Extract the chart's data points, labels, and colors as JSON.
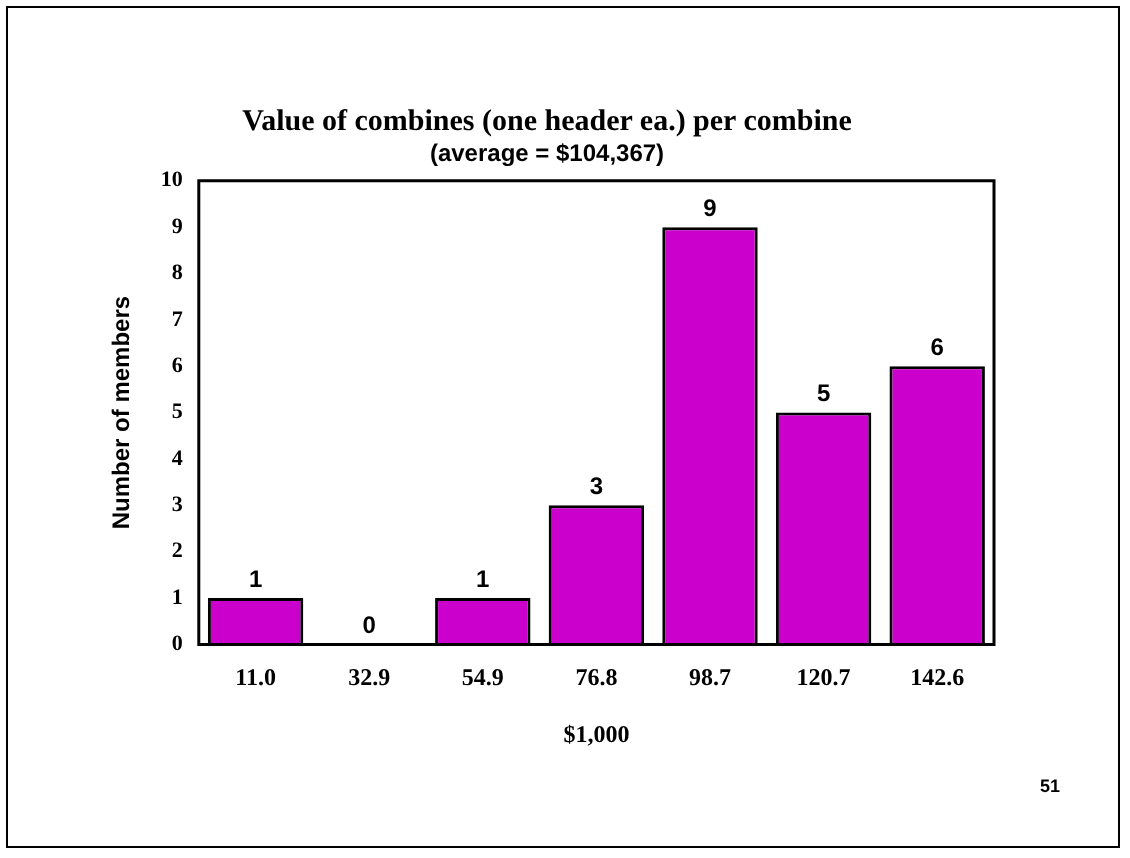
{
  "chart_data": {
    "type": "bar",
    "title": "Value of combines (one header ea.) per combine",
    "subtitle": "(average = $104,367)",
    "xlabel": "$1,000",
    "ylabel": "Number of members",
    "categories": [
      "11.0",
      "32.9",
      "54.9",
      "76.8",
      "98.7",
      "120.7",
      "142.6"
    ],
    "values": [
      1,
      0,
      1,
      3,
      9,
      5,
      6
    ],
    "color": "#cc00cc",
    "ylim": [
      0,
      10
    ],
    "yticks": [
      0,
      1,
      2,
      3,
      4,
      5,
      6,
      7,
      8,
      9,
      10
    ],
    "grid": false,
    "legend": false,
    "data_labels": true,
    "annotations": [
      "51"
    ]
  }
}
